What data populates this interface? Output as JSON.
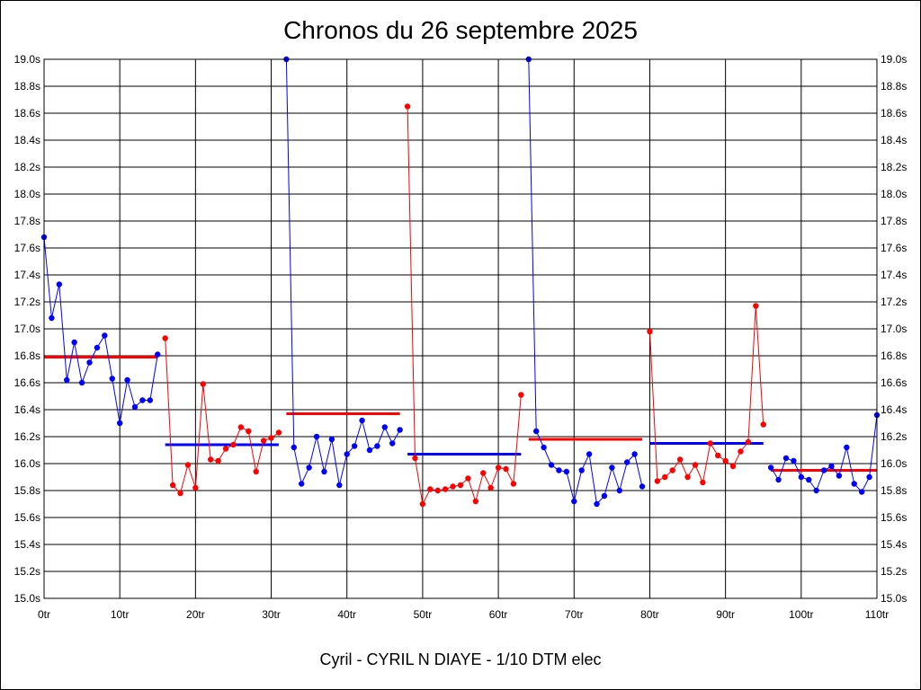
{
  "chart_data": {
    "type": "line",
    "title": "Chronos du 26 septembre 2025",
    "subtitle": "Cyril - CYRIL N DIAYE - 1/10 DTM elec",
    "xlim": [
      0,
      110
    ],
    "ylim": [
      15.0,
      19.0
    ],
    "x_ticks": [
      0,
      10,
      20,
      30,
      40,
      50,
      60,
      70,
      80,
      90,
      100,
      110
    ],
    "x_tick_labels": [
      "0tr",
      "10tr",
      "20tr",
      "30tr",
      "40tr",
      "50tr",
      "60tr",
      "70tr",
      "80tr",
      "90tr",
      "100tr",
      "110tr"
    ],
    "y_ticks": [
      15.0,
      15.2,
      15.4,
      15.6,
      15.8,
      16.0,
      16.2,
      16.4,
      16.6,
      16.8,
      17.0,
      17.2,
      17.4,
      17.6,
      17.8,
      18.0,
      18.2,
      18.4,
      18.6,
      18.8,
      19.0
    ],
    "y_tick_labels": [
      "15.0s",
      "15.2s",
      "15.4s",
      "15.6s",
      "15.8s",
      "16.0s",
      "16.2s",
      "16.4s",
      "16.6s",
      "16.8s",
      "17.0s",
      "17.2s",
      "17.4s",
      "17.6s",
      "17.8s",
      "18.0s",
      "18.2s",
      "18.4s",
      "18.6s",
      "18.8s",
      "19.0s"
    ],
    "grid": true,
    "colors": {
      "blue": "#0000ff",
      "red": "#ff0000"
    },
    "series": [
      {
        "color": "blue",
        "x": [
          0,
          1,
          2,
          3,
          4,
          5,
          6,
          7,
          8,
          9,
          10,
          11,
          12,
          13,
          14,
          15
        ],
        "y": [
          17.68,
          17.08,
          17.33,
          16.62,
          16.9,
          16.6,
          16.75,
          16.86,
          16.95,
          16.63,
          16.3,
          16.62,
          16.42,
          16.47,
          16.47,
          16.81
        ],
        "mean": 16.79
      },
      {
        "color": "red",
        "x": [
          16,
          17,
          18,
          19,
          20,
          21,
          22,
          23,
          24,
          25,
          26,
          27,
          28,
          29,
          30,
          31
        ],
        "y": [
          16.93,
          15.84,
          15.78,
          15.99,
          15.82,
          16.59,
          16.03,
          16.02,
          16.11,
          16.14,
          16.27,
          16.24,
          15.94,
          16.17,
          16.19,
          16.23
        ],
        "mean": 16.14
      },
      {
        "color": "blue",
        "x": [
          32,
          33,
          34,
          35,
          36,
          37,
          38,
          39,
          40,
          41,
          42,
          43,
          44,
          45,
          46,
          47
        ],
        "y": [
          19.0,
          16.12,
          15.85,
          15.97,
          16.2,
          15.94,
          16.18,
          15.84,
          16.07,
          16.13,
          16.32,
          16.1,
          16.13,
          16.27,
          16.15,
          16.25
        ],
        "mean": 16.37
      },
      {
        "color": "red",
        "x": [
          48,
          49,
          50,
          51,
          52,
          53,
          54,
          55,
          56,
          57,
          58,
          59,
          60,
          61,
          62,
          63
        ],
        "y": [
          18.65,
          16.04,
          15.7,
          15.81,
          15.8,
          15.81,
          15.83,
          15.84,
          15.89,
          15.72,
          15.93,
          15.82,
          15.97,
          15.96,
          15.85,
          16.51
        ],
        "mean": 16.07
      },
      {
        "color": "blue",
        "x": [
          64,
          65,
          66,
          67,
          68,
          69,
          70,
          71,
          72,
          73,
          74,
          75,
          76,
          77,
          78,
          79
        ],
        "y": [
          19.0,
          16.24,
          16.12,
          15.99,
          15.95,
          15.94,
          15.72,
          15.95,
          16.07,
          15.7,
          15.76,
          15.97,
          15.8,
          16.01,
          16.07,
          15.83
        ],
        "mean": 16.18
      },
      {
        "color": "red",
        "x": [
          80,
          81,
          82,
          83,
          84,
          85,
          86,
          87,
          88,
          89,
          90,
          91,
          92,
          93,
          94,
          95
        ],
        "y": [
          16.98,
          15.87,
          15.9,
          15.95,
          16.03,
          15.9,
          15.99,
          15.86,
          16.15,
          16.06,
          16.02,
          15.98,
          16.09,
          16.16,
          17.17,
          16.29
        ],
        "mean": 16.15
      },
      {
        "color": "blue",
        "x": [
          96,
          97,
          98,
          99,
          100,
          101,
          102,
          103,
          104,
          105,
          106,
          107,
          108,
          109,
          110
        ],
        "y": [
          15.97,
          15.88,
          16.04,
          16.02,
          15.9,
          15.88,
          15.8,
          15.95,
          15.98,
          15.91,
          16.12,
          15.85,
          15.79,
          15.9,
          16.36
        ],
        "mean": 15.95
      }
    ],
    "means": [
      {
        "color": "red",
        "from": 0,
        "to": 15,
        "value": 16.79
      },
      {
        "color": "blue",
        "from": 16,
        "to": 31,
        "value": 16.14
      },
      {
        "color": "red",
        "from": 32,
        "to": 47,
        "value": 16.37
      },
      {
        "color": "blue",
        "from": 48,
        "to": 63,
        "value": 16.07
      },
      {
        "color": "red",
        "from": 64,
        "to": 79,
        "value": 16.18
      },
      {
        "color": "blue",
        "from": 80,
        "to": 95,
        "value": 16.15
      },
      {
        "color": "red",
        "from": 96,
        "to": 110,
        "value": 15.95
      }
    ]
  }
}
